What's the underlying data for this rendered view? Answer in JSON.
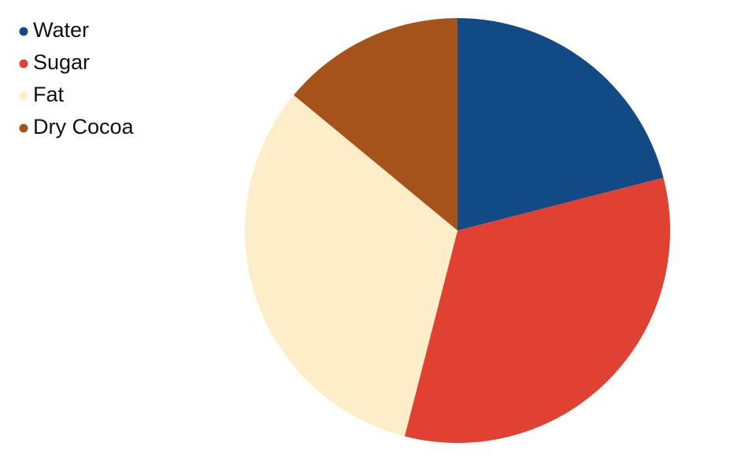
{
  "chart_data": {
    "type": "pie",
    "categories": [
      "Water",
      "Sugar",
      "Fat",
      "Dry Cocoa"
    ],
    "values": [
      21,
      33,
      32,
      14
    ],
    "colors": [
      "#124a85",
      "#e04133",
      "#fdeec9",
      "#a6521b"
    ],
    "legend": "top-left"
  }
}
